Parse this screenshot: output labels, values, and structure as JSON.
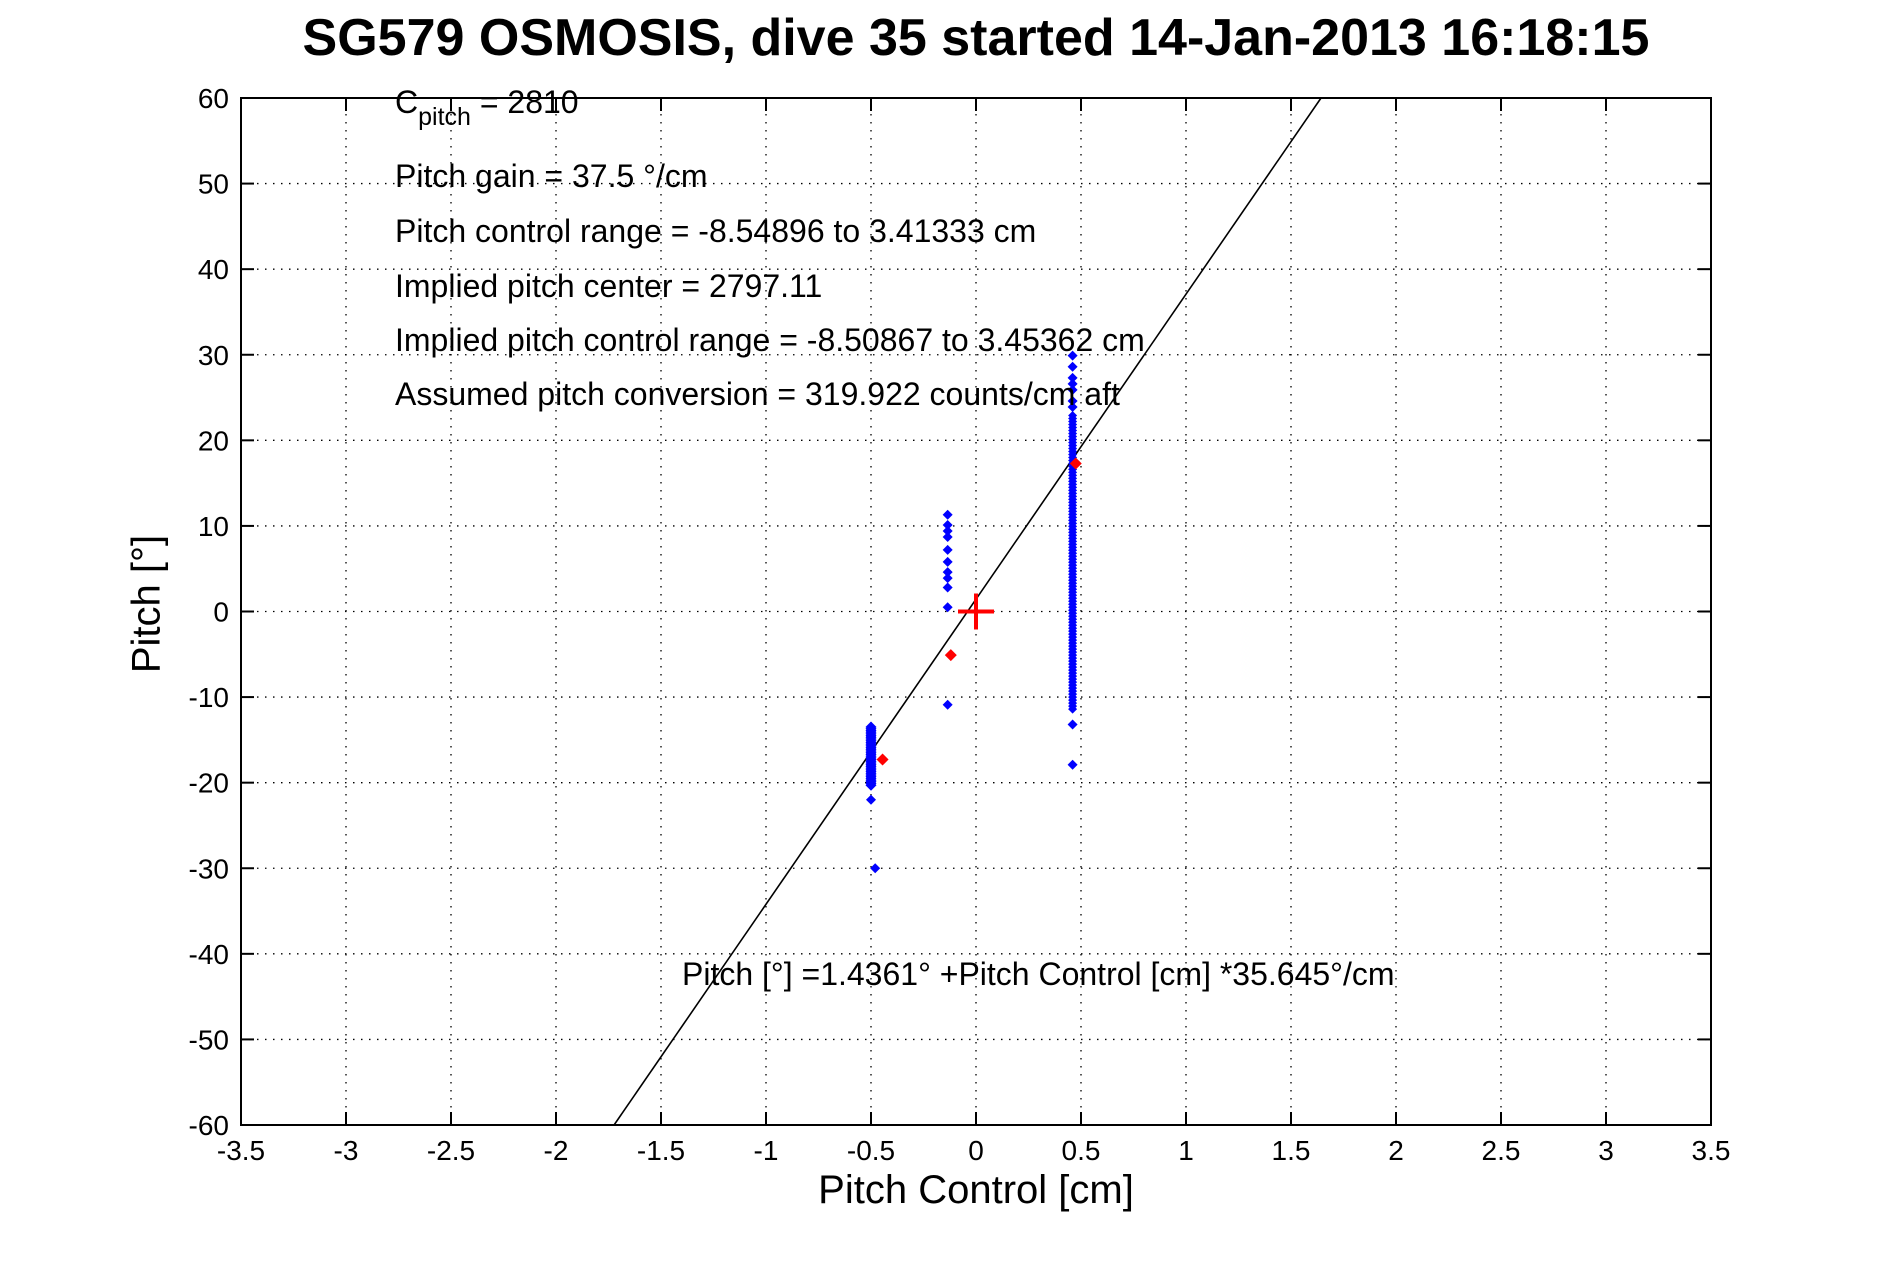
{
  "title": "SG579 OSMOSIS, dive 35 started 14-Jan-2013 16:18:15",
  "annotations": {
    "c_pitch_prefix": "C",
    "c_pitch_sub": "pitch",
    "c_pitch_value": " = 2810",
    "lines": [
      "Pitch gain = 37.5 °/cm",
      "Pitch control range = -8.54896 to 3.41333 cm",
      "Implied pitch center = 2797.11",
      "Implied pitch control range = -8.50867 to 3.45362 cm",
      "Assumed pitch conversion = 319.922 counts/cm aft"
    ],
    "fit_equation": "Pitch [°] =1.4361° +Pitch Control [cm] *35.645°/cm"
  },
  "chart_data": {
    "type": "scatter",
    "title": "SG579 OSMOSIS, dive 35 started 14-Jan-2013 16:18:15",
    "xlabel": "Pitch Control [cm]",
    "ylabel": "Pitch [°]",
    "xlim": [
      -3.5,
      3.5
    ],
    "ylim": [
      -60,
      60
    ],
    "xticks": [
      -3.5,
      -3,
      -2.5,
      -2,
      -1.5,
      -1,
      -0.5,
      0,
      0.5,
      1,
      1.5,
      2,
      2.5,
      3,
      3.5
    ],
    "yticks": [
      -60,
      -50,
      -40,
      -30,
      -20,
      -10,
      0,
      10,
      20,
      30,
      40,
      50,
      60
    ],
    "grid": "dotted",
    "legend": "none",
    "fit_line": {
      "intercept": 1.4361,
      "slope": 35.645,
      "color": "#000000",
      "description": "Pitch = 1.4361 + 35.645 * PitchControl, clipped to axes"
    },
    "series": [
      {
        "name": "observed-pitch-samples",
        "color": "#0000ff",
        "marker": "diamond",
        "clusters": [
          {
            "x": -0.5,
            "y_from": -20.3,
            "y_to": -13.4,
            "step": 0.2,
            "size": 11
          },
          {
            "x": 0.46,
            "y_from": -11.4,
            "y_to": 23.1,
            "step": 0.35,
            "size": 9
          }
        ],
        "points": [
          [
            -0.5,
            -22.0
          ],
          [
            -0.48,
            -30.0
          ],
          [
            -0.135,
            11.3
          ],
          [
            -0.135,
            10.1
          ],
          [
            -0.135,
            9.4
          ],
          [
            -0.135,
            8.7
          ],
          [
            -0.135,
            7.2
          ],
          [
            -0.135,
            5.8
          ],
          [
            -0.135,
            4.6
          ],
          [
            -0.135,
            3.9
          ],
          [
            -0.135,
            2.8
          ],
          [
            -0.135,
            0.5
          ],
          [
            -0.135,
            -10.9
          ],
          [
            0.46,
            29.9
          ],
          [
            0.46,
            28.6
          ],
          [
            0.46,
            27.3
          ],
          [
            0.46,
            26.6
          ],
          [
            0.46,
            25.9
          ],
          [
            0.46,
            24.6
          ],
          [
            0.46,
            23.9
          ],
          [
            0.46,
            -13.2
          ],
          [
            0.46,
            -17.9
          ]
        ]
      },
      {
        "name": "dive-mean-pitch",
        "color": "#ff0000",
        "marker": "diamond",
        "points": [
          [
            -0.445,
            -17.3
          ],
          [
            -0.12,
            -5.1
          ],
          [
            0.475,
            17.3
          ]
        ]
      },
      {
        "name": "implied-pitch-center-marker",
        "color": "#ff0000",
        "marker": "plus",
        "size": 36,
        "points": [
          [
            0,
            0
          ]
        ]
      }
    ]
  },
  "colors": {
    "background": "#ffffff",
    "axis": "#000000",
    "observed": "#0000ff",
    "reference": "#ff0000"
  }
}
